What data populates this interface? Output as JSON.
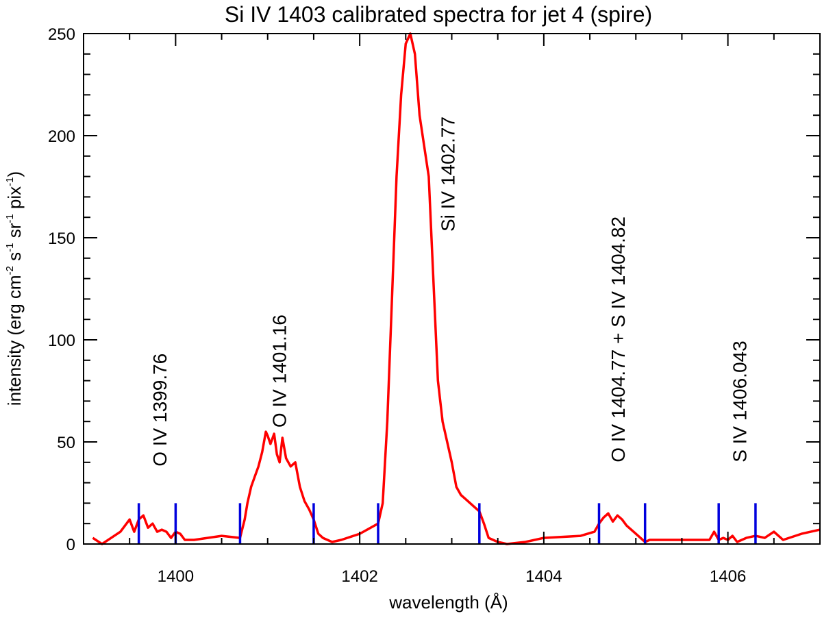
{
  "chart_data": {
    "type": "line",
    "title": "Si IV 1403 calibrated spectra for jet 4 (spire)",
    "xlabel": "wavelength (Å)",
    "ylabel": {
      "base": "intensity (erg cm",
      "exp1": "-2",
      "mid1": " s",
      "exp2": "-1",
      "mid2": " sr",
      "exp3": "-1",
      "mid3": " pix",
      "exp4": "-1",
      "end": ")"
    },
    "xlim": [
      1399.0,
      1407.0
    ],
    "ylim": [
      0,
      250
    ],
    "xticks": [
      {
        "value": 1400,
        "label": "1400"
      },
      {
        "value": 1402,
        "label": "1402"
      },
      {
        "value": 1404,
        "label": "1404"
      },
      {
        "value": 1406,
        "label": "1406"
      }
    ],
    "yticks": [
      {
        "value": 0,
        "label": "0"
      },
      {
        "value": 50,
        "label": "50"
      },
      {
        "value": 100,
        "label": "100"
      },
      {
        "value": 150,
        "label": "150"
      },
      {
        "value": 200,
        "label": "200"
      },
      {
        "value": 250,
        "label": "250"
      }
    ],
    "colors": {
      "spectrum": "#ff0000",
      "markers": "#0000dd",
      "axes": "#000000"
    },
    "series": [
      {
        "name": "spectrum",
        "x": [
          1399.1,
          1399.2,
          1399.3,
          1399.4,
          1399.5,
          1399.55,
          1399.6,
          1399.65,
          1399.7,
          1399.75,
          1399.8,
          1399.85,
          1399.9,
          1399.95,
          1400.0,
          1400.05,
          1400.1,
          1400.2,
          1400.5,
          1400.7,
          1400.75,
          1400.78,
          1400.82,
          1400.86,
          1400.9,
          1400.94,
          1400.98,
          1401.0,
          1401.03,
          1401.07,
          1401.1,
          1401.13,
          1401.16,
          1401.2,
          1401.25,
          1401.3,
          1401.35,
          1401.4,
          1401.45,
          1401.5,
          1401.55,
          1401.6,
          1401.7,
          1401.8,
          1402.0,
          1402.2,
          1402.25,
          1402.3,
          1402.35,
          1402.4,
          1402.45,
          1402.5,
          1402.55,
          1402.6,
          1402.65,
          1402.7,
          1402.75,
          1402.8,
          1402.85,
          1402.9,
          1402.95,
          1403.0,
          1403.05,
          1403.1,
          1403.15,
          1403.2,
          1403.25,
          1403.3,
          1403.35,
          1403.4,
          1403.5,
          1403.6,
          1403.8,
          1404.0,
          1404.4,
          1404.55,
          1404.6,
          1404.65,
          1404.7,
          1404.75,
          1404.8,
          1404.85,
          1404.9,
          1404.95,
          1405.0,
          1405.05,
          1405.1,
          1405.15,
          1405.2,
          1405.5,
          1405.8,
          1405.85,
          1405.9,
          1405.95,
          1406.0,
          1406.05,
          1406.1,
          1406.2,
          1406.3,
          1406.4,
          1406.5,
          1406.6,
          1406.8,
          1407.0
        ],
        "y": [
          3,
          0,
          3,
          6,
          12,
          6,
          12,
          14,
          8,
          10,
          6,
          7,
          6,
          3,
          6,
          5,
          2,
          2,
          4,
          3,
          12,
          20,
          28,
          33,
          38,
          45,
          55,
          53,
          49,
          54,
          44,
          40,
          52,
          42,
          38,
          40,
          28,
          21,
          17,
          12,
          5,
          3,
          1,
          2,
          5,
          10,
          20,
          60,
          120,
          180,
          220,
          245,
          250,
          240,
          210,
          195,
          180,
          130,
          80,
          60,
          50,
          40,
          28,
          24,
          22,
          20,
          18,
          16,
          10,
          3,
          1,
          0,
          1,
          3,
          4,
          6,
          10,
          13,
          15,
          11,
          14,
          12,
          9,
          7,
          5,
          3,
          1,
          2,
          2,
          2,
          2,
          6,
          2,
          3,
          2,
          4,
          1,
          3,
          4,
          3,
          6,
          2,
          5,
          7
        ]
      }
    ],
    "markers": [
      1399.6,
      1400.0,
      1400.7,
      1401.5,
      1402.2,
      1403.3,
      1404.6,
      1405.1,
      1405.9,
      1406.3
    ],
    "marker_height": 20,
    "line_labels": [
      {
        "text": "O IV 1399.76",
        "x": 1399.9,
        "y": 38
      },
      {
        "text": "O IV 1401.16",
        "x": 1401.2,
        "y": 57
      },
      {
        "text": "Si IV 1402.77",
        "x": 1403.03,
        "y": 153
      },
      {
        "text": "O IV 1404.77 + S IV 1404.82",
        "x": 1404.88,
        "y": 40
      },
      {
        "text": "S IV 1406.043",
        "x": 1406.2,
        "y": 40
      }
    ]
  }
}
